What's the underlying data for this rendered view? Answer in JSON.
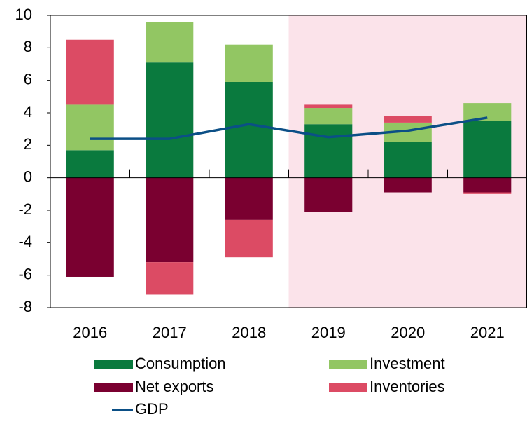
{
  "chart_data": {
    "type": "stacked_bar_line",
    "categories": [
      "2016",
      "2017",
      "2018",
      "2019",
      "2020",
      "2021"
    ],
    "series": [
      {
        "name": "Consumption",
        "color": "#0a7a3e",
        "values": [
          1.7,
          7.1,
          5.9,
          3.3,
          2.2,
          3.5
        ]
      },
      {
        "name": "Investment",
        "color": "#92c663",
        "values": [
          2.8,
          2.5,
          2.3,
          1.0,
          1.2,
          1.1
        ]
      },
      {
        "name": "Net exports",
        "color": "#7a0030",
        "values": [
          -6.1,
          -5.2,
          -2.6,
          -2.1,
          -0.9,
          -0.9
        ]
      },
      {
        "name": "Inventories",
        "color": "#dc4b64",
        "values": [
          4.0,
          -2.0,
          -2.3,
          0.2,
          0.4,
          -0.1
        ]
      },
      {
        "name": "GDP",
        "type": "line",
        "color": "#0b4f86",
        "values": [
          2.4,
          2.4,
          3.3,
          2.5,
          2.9,
          3.7
        ]
      }
    ],
    "shaded": [
      false,
      false,
      false,
      true,
      true,
      true
    ],
    "shade_color": "#fbe3ea",
    "ylim": [
      -8,
      10
    ],
    "yticks": [
      -8,
      -6,
      -4,
      -2,
      0,
      2,
      4,
      6,
      8,
      10
    ]
  }
}
